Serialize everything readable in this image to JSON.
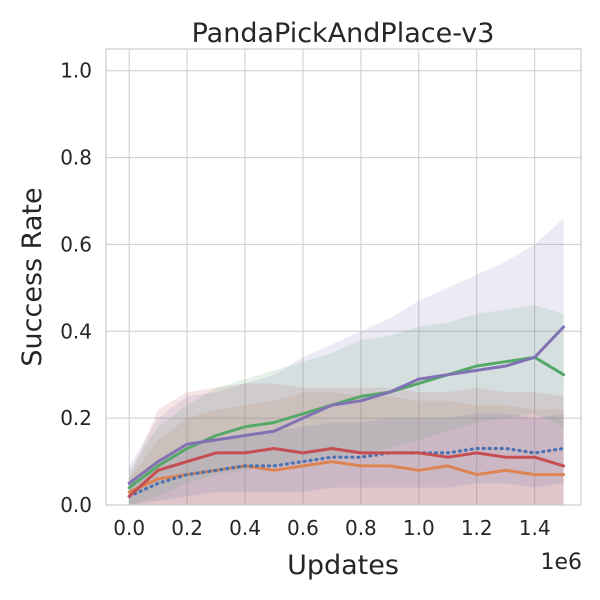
{
  "chart_data": {
    "type": "line",
    "title": "PandaPickAndPlace-v3",
    "xlabel": "Updates",
    "ylabel": "Success Rate",
    "x_offset_label": "1e6",
    "xlim": [
      -0.08,
      1.56
    ],
    "ylim": [
      0,
      1.05
    ],
    "xticks": [
      0.0,
      0.2,
      0.4,
      0.6,
      0.8,
      1.0,
      1.2,
      1.4
    ],
    "xtick_labels": [
      "0.0",
      "0.2",
      "0.4",
      "0.6",
      "0.8",
      "1.0",
      "1.2",
      "1.4"
    ],
    "yticks": [
      0.0,
      0.2,
      0.4,
      0.6,
      0.8,
      1.0
    ],
    "ytick_labels": [
      "0.0",
      "0.2",
      "0.4",
      "0.6",
      "0.8",
      "1.0"
    ],
    "grid": true,
    "legend": "none",
    "x": [
      0.0,
      0.1,
      0.2,
      0.3,
      0.4,
      0.5,
      0.6,
      0.7,
      0.8,
      0.9,
      1.0,
      1.1,
      1.2,
      1.3,
      1.4,
      1.5
    ],
    "series": [
      {
        "color": "#dd8452",
        "style": "solid",
        "values": [
          0.03,
          0.06,
          0.07,
          0.08,
          0.09,
          0.08,
          0.09,
          0.1,
          0.09,
          0.09,
          0.08,
          0.09,
          0.07,
          0.08,
          0.07,
          0.07
        ],
        "band_upper": [
          0.06,
          0.15,
          0.2,
          0.22,
          0.23,
          0.24,
          0.26,
          0.26,
          0.25,
          0.25,
          0.24,
          0.24,
          0.23,
          0.23,
          0.22,
          0.22
        ],
        "band_lower": [
          0.0,
          0.0,
          0.0,
          0.0,
          0.0,
          0.0,
          0.0,
          0.0,
          0.0,
          0.0,
          0.0,
          0.0,
          0.0,
          0.0,
          0.0,
          0.0
        ]
      },
      {
        "color": "#4c72b0",
        "style": "dotted",
        "values": [
          0.02,
          0.05,
          0.07,
          0.08,
          0.09,
          0.09,
          0.1,
          0.11,
          0.11,
          0.12,
          0.12,
          0.12,
          0.13,
          0.13,
          0.12,
          0.13
        ],
        "band_upper": [
          0.05,
          0.1,
          0.13,
          0.15,
          0.16,
          0.17,
          0.18,
          0.19,
          0.19,
          0.2,
          0.2,
          0.2,
          0.21,
          0.21,
          0.2,
          0.21
        ],
        "band_lower": [
          0.0,
          0.01,
          0.02,
          0.03,
          0.03,
          0.03,
          0.03,
          0.04,
          0.04,
          0.04,
          0.04,
          0.04,
          0.05,
          0.05,
          0.04,
          0.05
        ]
      },
      {
        "color": "#c44e52",
        "style": "solid",
        "values": [
          0.02,
          0.08,
          0.1,
          0.12,
          0.12,
          0.13,
          0.12,
          0.13,
          0.12,
          0.12,
          0.12,
          0.11,
          0.12,
          0.11,
          0.11,
          0.09
        ],
        "band_upper": [
          0.06,
          0.22,
          0.26,
          0.27,
          0.28,
          0.28,
          0.27,
          0.27,
          0.27,
          0.27,
          0.26,
          0.26,
          0.27,
          0.26,
          0.26,
          0.25
        ],
        "band_lower": [
          0.0,
          0.0,
          0.0,
          0.0,
          0.0,
          0.0,
          0.0,
          0.0,
          0.0,
          0.0,
          0.0,
          0.0,
          0.0,
          0.0,
          0.0,
          0.0
        ]
      },
      {
        "color": "#55a868",
        "style": "solid",
        "values": [
          0.04,
          0.09,
          0.13,
          0.16,
          0.18,
          0.19,
          0.21,
          0.23,
          0.25,
          0.26,
          0.28,
          0.3,
          0.32,
          0.33,
          0.34,
          0.3
        ],
        "band_upper": [
          0.08,
          0.18,
          0.23,
          0.27,
          0.29,
          0.31,
          0.33,
          0.35,
          0.38,
          0.39,
          0.41,
          0.42,
          0.44,
          0.45,
          0.46,
          0.44
        ],
        "band_lower": [
          0.0,
          0.02,
          0.05,
          0.07,
          0.08,
          0.09,
          0.1,
          0.11,
          0.12,
          0.13,
          0.15,
          0.17,
          0.19,
          0.2,
          0.21,
          0.18
        ]
      },
      {
        "color": "#8172b3",
        "style": "solid",
        "values": [
          0.05,
          0.1,
          0.14,
          0.15,
          0.16,
          0.17,
          0.2,
          0.23,
          0.24,
          0.26,
          0.29,
          0.3,
          0.31,
          0.32,
          0.34,
          0.41
        ],
        "band_upper": [
          0.09,
          0.2,
          0.25,
          0.26,
          0.28,
          0.3,
          0.34,
          0.37,
          0.4,
          0.43,
          0.47,
          0.5,
          0.53,
          0.56,
          0.6,
          0.66
        ],
        "band_lower": [
          0.0,
          0.0,
          0.0,
          0.0,
          0.0,
          0.0,
          0.0,
          0.0,
          0.0,
          0.0,
          0.0,
          0.0,
          0.0,
          0.0,
          0.0,
          0.0
        ]
      }
    ]
  }
}
